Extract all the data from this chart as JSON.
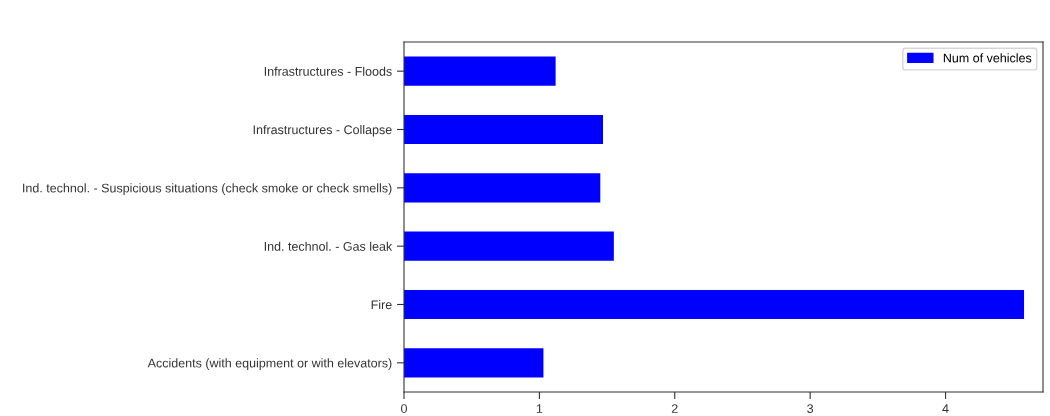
{
  "chart_data": {
    "type": "bar",
    "orientation": "horizontal",
    "categories": [
      "Infrastructures - Floods",
      "Infrastructures - Collapse",
      "Ind. technol. - Suspicious situations (check smoke or check smells)",
      "Ind. technol. - Gas leak",
      "Fire",
      "Accidents (with equipment or with elevators)"
    ],
    "series": [
      {
        "name": "Num of vehicles",
        "color": "#0000ff",
        "values": [
          1.12,
          1.47,
          1.45,
          1.55,
          4.58,
          1.03
        ]
      }
    ],
    "xlim": [
      0,
      4.72
    ],
    "xticks": [
      0,
      1,
      2,
      3,
      4
    ],
    "legend": "top right",
    "grid": false
  }
}
